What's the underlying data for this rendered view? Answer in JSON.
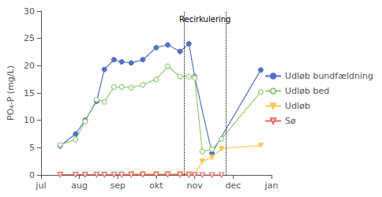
{
  "chart_data": {
    "type": "line",
    "ylabel": "PO₄-P (mg/L)",
    "xlim": [
      7.0,
      13.0
    ],
    "xticks": [
      {
        "value": 7.0,
        "label": "jul"
      },
      {
        "value": 8.0,
        "label": "aug"
      },
      {
        "value": 9.0,
        "label": "sep"
      },
      {
        "value": 10.0,
        "label": "okt"
      },
      {
        "value": 11.0,
        "label": "nov"
      },
      {
        "value": 12.0,
        "label": "dec"
      },
      {
        "value": 13.0,
        "label": "jan"
      }
    ],
    "ylim": [
      0,
      30
    ],
    "yticks": [
      0,
      5,
      10,
      15,
      20,
      25,
      30
    ],
    "grid": false,
    "legend": "right",
    "vlines": [
      10.72,
      11.82
    ],
    "annotations": [
      {
        "text": "Recirkulering",
        "x": 11.27,
        "y": 29.5
      }
    ],
    "series": [
      {
        "name": "Udløb bundfældning",
        "marker": "filled_circle",
        "x": [
          7.5,
          7.9,
          8.15,
          8.45,
          8.65,
          8.9,
          9.1,
          9.35,
          9.65,
          10.0,
          10.3,
          10.62,
          10.85,
          11.0,
          11.45,
          12.72
        ],
        "values": [
          5.3,
          7.5,
          10.0,
          13.5,
          19.3,
          21.1,
          20.7,
          20.5,
          21.1,
          23.3,
          23.8,
          22.6,
          24.0,
          18.0,
          4.0,
          19.2
        ]
      },
      {
        "name": "Udløb bed",
        "marker": "open_circle",
        "x": [
          7.5,
          7.9,
          8.15,
          8.45,
          8.65,
          8.9,
          9.1,
          9.35,
          9.65,
          10.0,
          10.3,
          10.62,
          10.85,
          11.0,
          11.2,
          11.45,
          11.7,
          12.72
        ],
        "values": [
          5.5,
          6.5,
          9.8,
          13.8,
          13.4,
          16.1,
          16.1,
          16.0,
          16.5,
          17.5,
          19.9,
          18.0,
          18.0,
          17.8,
          4.3,
          4.7,
          6.6,
          15.2
        ]
      },
      {
        "name": "Udløb",
        "marker": "filled_triangle_down",
        "x": [
          7.5,
          7.9,
          8.15,
          8.45,
          8.65,
          8.9,
          9.1,
          9.35,
          9.65,
          10.0,
          10.3,
          10.62,
          10.85,
          11.0,
          11.2,
          11.45,
          11.7,
          12.72
        ],
        "values": [
          0.1,
          0.1,
          0.1,
          0.1,
          0.1,
          0.1,
          0.1,
          0.2,
          0.2,
          0.2,
          0.2,
          0.2,
          0.2,
          0.1,
          2.5,
          3.2,
          4.8,
          5.4
        ]
      },
      {
        "name": "Sø",
        "marker": "open_triangle_down",
        "x": [
          7.5,
          7.9,
          8.15,
          8.45,
          8.65,
          8.9,
          9.1,
          9.35,
          9.65,
          10.0,
          10.3,
          10.62,
          10.85,
          11.0,
          11.2,
          11.45,
          11.7
        ],
        "values": [
          0.05,
          0.05,
          0.05,
          0.05,
          0.05,
          0.05,
          0.05,
          0.05,
          0.05,
          0.05,
          0.05,
          0.05,
          0.0,
          0.0,
          0.0,
          0.0,
          0.0
        ]
      }
    ]
  }
}
